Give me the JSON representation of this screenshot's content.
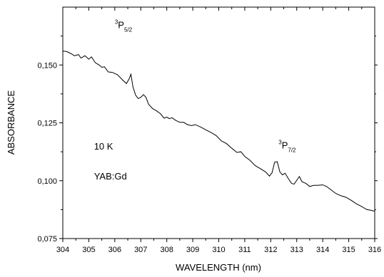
{
  "chart_data": {
    "type": "line",
    "xlabel": "WAVELENGTH (nm)",
    "ylabel": "ABSORBANCE",
    "xlim": [
      304,
      316
    ],
    "ylim": [
      0.075,
      0.175
    ],
    "xticks": [
      304,
      305,
      306,
      307,
      308,
      309,
      310,
      311,
      312,
      313,
      314,
      315,
      316
    ],
    "yticks": [
      0.075,
      0.1,
      0.125,
      0.15
    ],
    "ytick_labels": [
      "0,075",
      "0,100",
      "0,125",
      "0,150"
    ],
    "grid": false,
    "series": [
      {
        "x": [
          304.0,
          304.15,
          304.3,
          304.45,
          304.6,
          304.7,
          304.85,
          305.0,
          305.1,
          305.25,
          305.4,
          305.5,
          305.6,
          305.75,
          305.9,
          306.1,
          306.3,
          306.45,
          306.55,
          306.62,
          306.7,
          306.8,
          306.9,
          307.0,
          307.1,
          307.2,
          307.3,
          307.45,
          307.6,
          307.75,
          307.9,
          308.0,
          308.1,
          308.2,
          308.35,
          308.5,
          308.65,
          308.8,
          308.95,
          309.1,
          309.3,
          309.5,
          309.7,
          309.9,
          310.1,
          310.3,
          310.5,
          310.7,
          310.85,
          311.0,
          311.2,
          311.4,
          311.6,
          311.8,
          311.95,
          312.05,
          312.15,
          312.25,
          312.35,
          312.45,
          312.55,
          312.7,
          312.8,
          312.9,
          313.0,
          313.1,
          313.2,
          313.35,
          313.5,
          313.65,
          313.8,
          314.0,
          314.15,
          314.3,
          314.5,
          314.7,
          314.9,
          315.1,
          315.3,
          315.5,
          315.7,
          315.85,
          316.0
        ],
        "y": [
          0.156,
          0.1558,
          0.155,
          0.154,
          0.1545,
          0.153,
          0.154,
          0.1525,
          0.1535,
          0.151,
          0.15,
          0.149,
          0.1492,
          0.147,
          0.1468,
          0.1458,
          0.1435,
          0.142,
          0.144,
          0.146,
          0.1405,
          0.137,
          0.1355,
          0.136,
          0.1372,
          0.136,
          0.133,
          0.1312,
          0.1302,
          0.129,
          0.127,
          0.1275,
          0.1268,
          0.1272,
          0.126,
          0.1252,
          0.1252,
          0.1242,
          0.1238,
          0.1242,
          0.1232,
          0.122,
          0.1208,
          0.1195,
          0.1172,
          0.116,
          0.114,
          0.1122,
          0.1125,
          0.1105,
          0.1088,
          0.1065,
          0.1052,
          0.1038,
          0.102,
          0.1035,
          0.108,
          0.1082,
          0.1038,
          0.1025,
          0.1032,
          0.1005,
          0.0988,
          0.0985,
          0.1002,
          0.1018,
          0.0996,
          0.0988,
          0.0975,
          0.098,
          0.098,
          0.0982,
          0.0975,
          0.0962,
          0.0945,
          0.0935,
          0.0928,
          0.0915,
          0.09,
          0.0888,
          0.0875,
          0.0872,
          0.0868
        ]
      }
    ],
    "annotations": [
      {
        "superscript": "3",
        "main": "P",
        "subscript": "5/2",
        "x": 306.0,
        "y": 0.166
      },
      {
        "superscript": "3",
        "main": "P",
        "subscript": "7/2",
        "x": 312.3,
        "y": 0.114
      },
      {
        "text": "10 K",
        "x": 305.2,
        "y": 0.1135
      },
      {
        "text": "YAB:Gd",
        "x": 305.2,
        "y": 0.1005
      }
    ]
  }
}
